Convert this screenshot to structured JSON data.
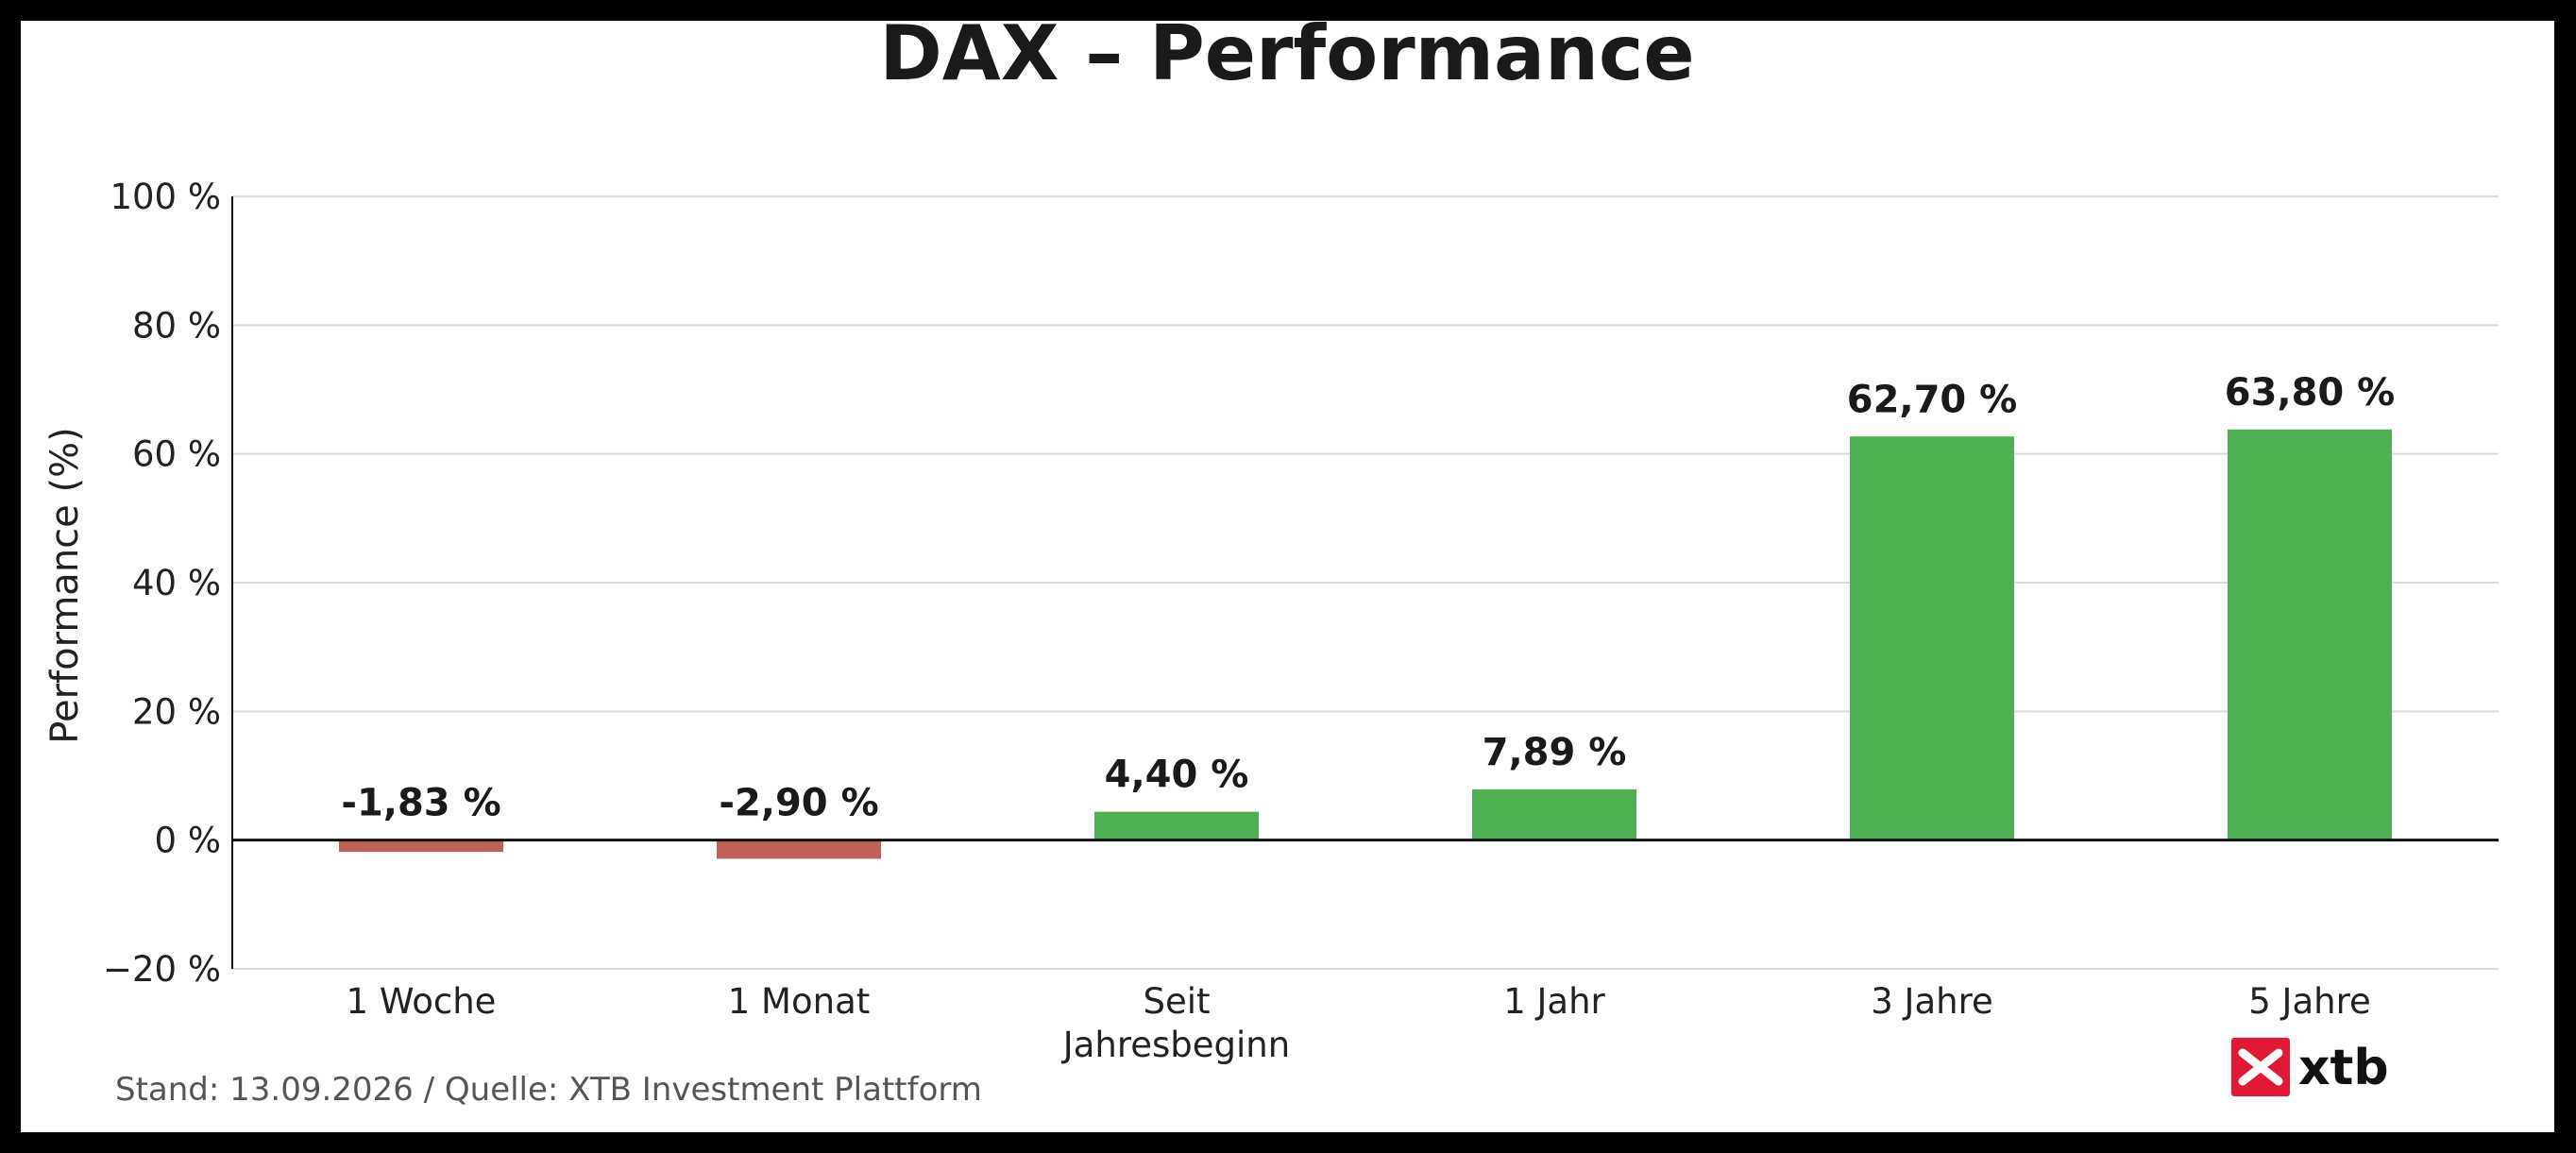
{
  "chart_data": {
    "type": "bar",
    "title": "DAX – Performance",
    "ylabel": "Performance (%)",
    "xlabel": "",
    "categories": [
      "1 Woche",
      "1 Monat",
      "Seit Jahresbeginn",
      "1 Jahr",
      "3 Jahre",
      "5 Jahre"
    ],
    "category_lines": [
      [
        "1 Woche"
      ],
      [
        "1 Monat"
      ],
      [
        "Seit",
        "Jahresbeginn"
      ],
      [
        "1 Jahr"
      ],
      [
        "3 Jahre"
      ],
      [
        "5 Jahre"
      ]
    ],
    "values": [
      -1.83,
      -2.9,
      4.4,
      7.89,
      62.7,
      63.8
    ],
    "value_labels": [
      "-1,83 %",
      "-2,90 %",
      "4,40 %",
      "7,89 %",
      "62,70 %",
      "63,80 %"
    ],
    "ylim": [
      -20,
      100
    ],
    "yticks": [
      -20,
      0,
      20,
      40,
      60,
      80,
      100
    ],
    "ytick_labels": [
      "−20 %",
      "0 %",
      "20 %",
      "40 %",
      "60 %",
      "80 %",
      "100 %"
    ],
    "grid": true,
    "colors": {
      "positive": "#4caf50",
      "negative": "#c0605a",
      "grid": "#d9d9d9",
      "axis": "#111111"
    }
  },
  "footer": {
    "source": "Stand: 13.09.2026 / Quelle: XTB Investment Plattform"
  },
  "logo": {
    "text": "xtb",
    "icon": "xtb-logo-icon",
    "color": "#e31837"
  }
}
